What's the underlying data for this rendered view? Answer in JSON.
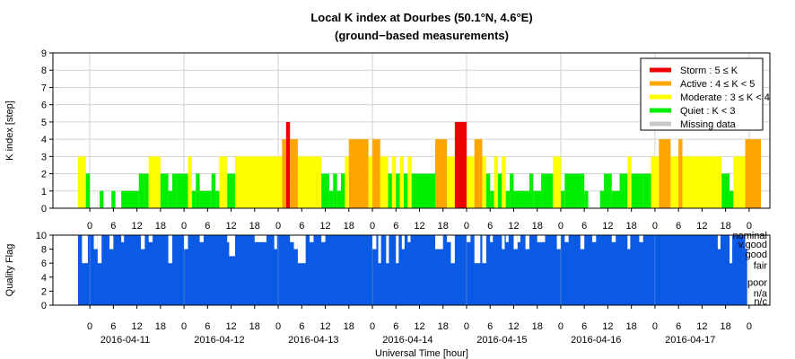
{
  "chart_data": [
    {
      "type": "bar",
      "title": "Local K index at Dourbes (50.1°N, 4.6°E)",
      "subtitle": "(ground−based measurements)",
      "ylabel": "K index [step]",
      "ylim": [
        0,
        9
      ],
      "yticks": [
        "0",
        "1",
        "2",
        "3",
        "4",
        "5",
        "6",
        "7",
        "8",
        "9"
      ],
      "grid": true,
      "x_hour_ticks": [
        "0",
        "6",
        "12",
        "18",
        "0",
        "6",
        "12",
        "18",
        "0",
        "6",
        "12",
        "18",
        "0",
        "6",
        "12",
        "18",
        "0",
        "6",
        "12",
        "18",
        "0",
        "6",
        "12",
        "18",
        "0",
        "6",
        "12",
        "18",
        "0"
      ],
      "legend_placement": "top-right",
      "legend": [
        {
          "label": "Storm : 5 ≤ K",
          "color": "#ee0000"
        },
        {
          "label": "Active : 4 ≤ K < 5",
          "color": "#ffa500"
        },
        {
          "label": "Moderate : 3 ≤ K < 4",
          "color": "#ffff00"
        },
        {
          "label": "Quiet : K < 3",
          "color": "#00ee00"
        },
        {
          "label": "Missing data",
          "color": "#c8c8c8"
        }
      ],
      "x_unit": "UTC hour from 2016-04-11 00:00",
      "bars": [
        {
          "x": 0.0,
          "w": 2.0,
          "k": 3
        },
        {
          "x": 2.0,
          "w": 1.0,
          "k": 2
        },
        {
          "x": 5.5,
          "w": 1.0,
          "k": 1
        },
        {
          "x": 8.5,
          "w": 1.0,
          "k": 1
        },
        {
          "x": 11.0,
          "w": 4.5,
          "k": 1
        },
        {
          "x": 15.5,
          "w": 2.5,
          "k": 2
        },
        {
          "x": 18.0,
          "w": 3.0,
          "k": 3
        },
        {
          "x": 21.0,
          "w": 2.0,
          "k": 2
        },
        {
          "x": 23.0,
          "w": 1.0,
          "k": 1
        },
        {
          "x": 24.0,
          "w": 1.0,
          "k": 2
        },
        {
          "x": 25.0,
          "w": 3.0,
          "k": 2
        },
        {
          "x": 28.0,
          "w": 1.0,
          "k": 3
        },
        {
          "x": 29.0,
          "w": 1.0,
          "k": 1
        },
        {
          "x": 30.0,
          "w": 1.0,
          "k": 2
        },
        {
          "x": 31.0,
          "w": 3.0,
          "k": 1
        },
        {
          "x": 34.0,
          "w": 1.0,
          "k": 2
        },
        {
          "x": 35.0,
          "w": 1.0,
          "k": 1
        },
        {
          "x": 36.0,
          "w": 2.0,
          "k": 3
        },
        {
          "x": 38.0,
          "w": 2.0,
          "k": 2
        },
        {
          "x": 40.0,
          "w": 12.0,
          "k": 3
        },
        {
          "x": 52.0,
          "w": 1.0,
          "k": 4
        },
        {
          "x": 53.0,
          "w": 1.0,
          "k": 5
        },
        {
          "x": 54.0,
          "w": 2.0,
          "k": 4
        },
        {
          "x": 56.0,
          "w": 6.0,
          "k": 3
        },
        {
          "x": 62.0,
          "w": 2.0,
          "k": 2
        },
        {
          "x": 64.0,
          "w": 1.0,
          "k": 1
        },
        {
          "x": 65.0,
          "w": 1.0,
          "k": 2
        },
        {
          "x": 66.0,
          "w": 1.0,
          "k": 1
        },
        {
          "x": 67.0,
          "w": 1.0,
          "k": 2
        },
        {
          "x": 68.0,
          "w": 1.0,
          "k": 3
        },
        {
          "x": 69.0,
          "w": 5.0,
          "k": 4
        },
        {
          "x": 74.0,
          "w": 1.0,
          "k": 3
        },
        {
          "x": 75.0,
          "w": 2.0,
          "k": 4
        },
        {
          "x": 77.0,
          "w": 2.0,
          "k": 3
        },
        {
          "x": 79.0,
          "w": 1.0,
          "k": 2
        },
        {
          "x": 80.0,
          "w": 1.0,
          "k": 3
        },
        {
          "x": 81.0,
          "w": 1.0,
          "k": 2
        },
        {
          "x": 82.0,
          "w": 1.0,
          "k": 3
        },
        {
          "x": 83.0,
          "w": 1.0,
          "k": 2
        },
        {
          "x": 84.0,
          "w": 1.0,
          "k": 3
        },
        {
          "x": 85.0,
          "w": 6.0,
          "k": 2
        },
        {
          "x": 91.0,
          "w": 3.0,
          "k": 4
        },
        {
          "x": 94.0,
          "w": 2.0,
          "k": 3
        },
        {
          "x": 96.0,
          "w": 3.0,
          "k": 5
        },
        {
          "x": 99.0,
          "w": 2.0,
          "k": 3
        },
        {
          "x": 101.0,
          "w": 2.0,
          "k": 4
        },
        {
          "x": 103.0,
          "w": 1.0,
          "k": 3
        },
        {
          "x": 104.0,
          "w": 1.0,
          "k": 2
        },
        {
          "x": 105.0,
          "w": 1.0,
          "k": 1
        },
        {
          "x": 106.0,
          "w": 1.0,
          "k": 3
        },
        {
          "x": 107.0,
          "w": 1.0,
          "k": 2
        },
        {
          "x": 108.0,
          "w": 1.0,
          "k": 3
        },
        {
          "x": 109.0,
          "w": 1.0,
          "k": 1
        },
        {
          "x": 110.0,
          "w": 1.0,
          "k": 2
        },
        {
          "x": 111.0,
          "w": 4.0,
          "k": 1
        },
        {
          "x": 115.0,
          "w": 1.0,
          "k": 2
        },
        {
          "x": 116.0,
          "w": 2.0,
          "k": 1
        },
        {
          "x": 118.0,
          "w": 3.0,
          "k": 2
        },
        {
          "x": 121.0,
          "w": 2.0,
          "k": 3
        },
        {
          "x": 123.0,
          "w": 1.0,
          "k": 1
        },
        {
          "x": 124.0,
          "w": 3.0,
          "k": 2
        },
        {
          "x": 127.0,
          "w": 2.0,
          "k": 2
        },
        {
          "x": 129.0,
          "w": 1.0,
          "k": 1
        },
        {
          "x": 133.0,
          "w": 1.0,
          "k": 1
        },
        {
          "x": 134.0,
          "w": 2.0,
          "k": 2
        },
        {
          "x": 136.0,
          "w": 2.0,
          "k": 1
        },
        {
          "x": 138.0,
          "w": 2.0,
          "k": 2
        },
        {
          "x": 140.0,
          "w": 1.0,
          "k": 3
        },
        {
          "x": 141.0,
          "w": 3.0,
          "k": 2
        },
        {
          "x": 144.0,
          "w": 2.0,
          "k": 2
        },
        {
          "x": 146.0,
          "w": 2.0,
          "k": 3
        },
        {
          "x": 148.0,
          "w": 3.0,
          "k": 4
        },
        {
          "x": 151.0,
          "w": 2.0,
          "k": 3
        },
        {
          "x": 153.0,
          "w": 1.0,
          "k": 4
        },
        {
          "x": 154.0,
          "w": 10.0,
          "k": 3
        },
        {
          "x": 164.0,
          "w": 2.0,
          "k": 2
        },
        {
          "x": 166.0,
          "w": 1.0,
          "k": 1
        },
        {
          "x": 167.0,
          "w": 3.0,
          "k": 3
        },
        {
          "x": 170.0,
          "w": 4.0,
          "k": 4
        }
      ]
    },
    {
      "type": "bar",
      "ylabel": "Quality Flag",
      "ylim": [
        0,
        10
      ],
      "yticks": [
        "0",
        "2",
        "4",
        "6",
        "8",
        "10"
      ],
      "quality_labels": [
        "nominal",
        "v.good",
        "good",
        "fair",
        "poor",
        "n/a",
        "n/c"
      ],
      "x_hour_ticks": [
        "0",
        "6",
        "12",
        "18",
        "0",
        "6",
        "12",
        "18",
        "0",
        "6",
        "12",
        "18",
        "0",
        "6",
        "12",
        "18",
        "0",
        "6",
        "12",
        "18",
        "0",
        "6",
        "12",
        "18",
        "0",
        "6",
        "12",
        "18",
        "0"
      ],
      "date_labels": [
        "2016-04-11",
        "2016-04-12",
        "2016-04-13",
        "2016-04-14",
        "2016-04-15",
        "2016-04-16",
        "2016-04-17"
      ],
      "xlabel": "Universal Time [hour]",
      "bar_color": "#0a5ae6",
      "flag_range": [
        0,
        174
      ],
      "dips": [
        {
          "x": 1.0,
          "w": 1.5,
          "v": 6
        },
        {
          "x": 4.0,
          "w": 1.0,
          "v": 8
        },
        {
          "x": 5.0,
          "w": 1.0,
          "v": 6
        },
        {
          "x": 8.0,
          "w": 1.0,
          "v": 8
        },
        {
          "x": 11.0,
          "w": 0.7,
          "v": 9
        },
        {
          "x": 16.0,
          "w": 1.0,
          "v": 8
        },
        {
          "x": 18.0,
          "w": 1.0,
          "v": 9
        },
        {
          "x": 23.0,
          "w": 1.0,
          "v": 6
        },
        {
          "x": 27.0,
          "w": 1.0,
          "v": 8
        },
        {
          "x": 31.0,
          "w": 1.0,
          "v": 9
        },
        {
          "x": 38.0,
          "w": 1.0,
          "v": 9
        },
        {
          "x": 38.5,
          "w": 1.5,
          "v": 7
        },
        {
          "x": 45.0,
          "w": 3.0,
          "v": 9
        },
        {
          "x": 50.0,
          "w": 0.7,
          "v": 8
        },
        {
          "x": 54.0,
          "w": 1.0,
          "v": 9
        },
        {
          "x": 55.0,
          "w": 1.0,
          "v": 8
        },
        {
          "x": 56.0,
          "w": 2.0,
          "v": 6
        },
        {
          "x": 59.0,
          "w": 1.0,
          "v": 9
        },
        {
          "x": 62.0,
          "w": 1.0,
          "v": 9
        },
        {
          "x": 75.0,
          "w": 1.0,
          "v": 8
        },
        {
          "x": 76.5,
          "w": 0.7,
          "v": 6
        },
        {
          "x": 78.5,
          "w": 0.7,
          "v": 6
        },
        {
          "x": 81.0,
          "w": 0.7,
          "v": 6
        },
        {
          "x": 82.5,
          "w": 0.7,
          "v": 8
        },
        {
          "x": 84.0,
          "w": 0.7,
          "v": 9
        },
        {
          "x": 91.0,
          "w": 2.0,
          "v": 8
        },
        {
          "x": 94.0,
          "w": 1.0,
          "v": 9
        },
        {
          "x": 95.0,
          "w": 1.0,
          "v": 6
        },
        {
          "x": 99.0,
          "w": 1.0,
          "v": 9
        },
        {
          "x": 101.0,
          "w": 1.5,
          "v": 6
        },
        {
          "x": 103.0,
          "w": 1.0,
          "v": 6
        },
        {
          "x": 105.0,
          "w": 0.7,
          "v": 9
        },
        {
          "x": 108.0,
          "w": 0.7,
          "v": 8
        },
        {
          "x": 109.0,
          "w": 0.7,
          "v": 9
        },
        {
          "x": 111.0,
          "w": 1.0,
          "v": 8
        },
        {
          "x": 112.0,
          "w": 0.7,
          "v": 9
        },
        {
          "x": 114.0,
          "w": 1.0,
          "v": 8
        },
        {
          "x": 117.0,
          "w": 2.0,
          "v": 9
        },
        {
          "x": 122.0,
          "w": 1.0,
          "v": 8
        },
        {
          "x": 124.0,
          "w": 1.0,
          "v": 9
        },
        {
          "x": 128.0,
          "w": 1.0,
          "v": 8
        },
        {
          "x": 131.0,
          "w": 1.0,
          "v": 9
        },
        {
          "x": 136.0,
          "w": 1.0,
          "v": 9
        },
        {
          "x": 140.0,
          "w": 0.7,
          "v": 8
        },
        {
          "x": 143.0,
          "w": 1.0,
          "v": 9
        },
        {
          "x": 163.0,
          "w": 0.7,
          "v": 8
        },
        {
          "x": 166.0,
          "w": 0.7,
          "v": 6
        },
        {
          "x": 170.0,
          "w": 1.0,
          "v": 8
        }
      ]
    }
  ]
}
